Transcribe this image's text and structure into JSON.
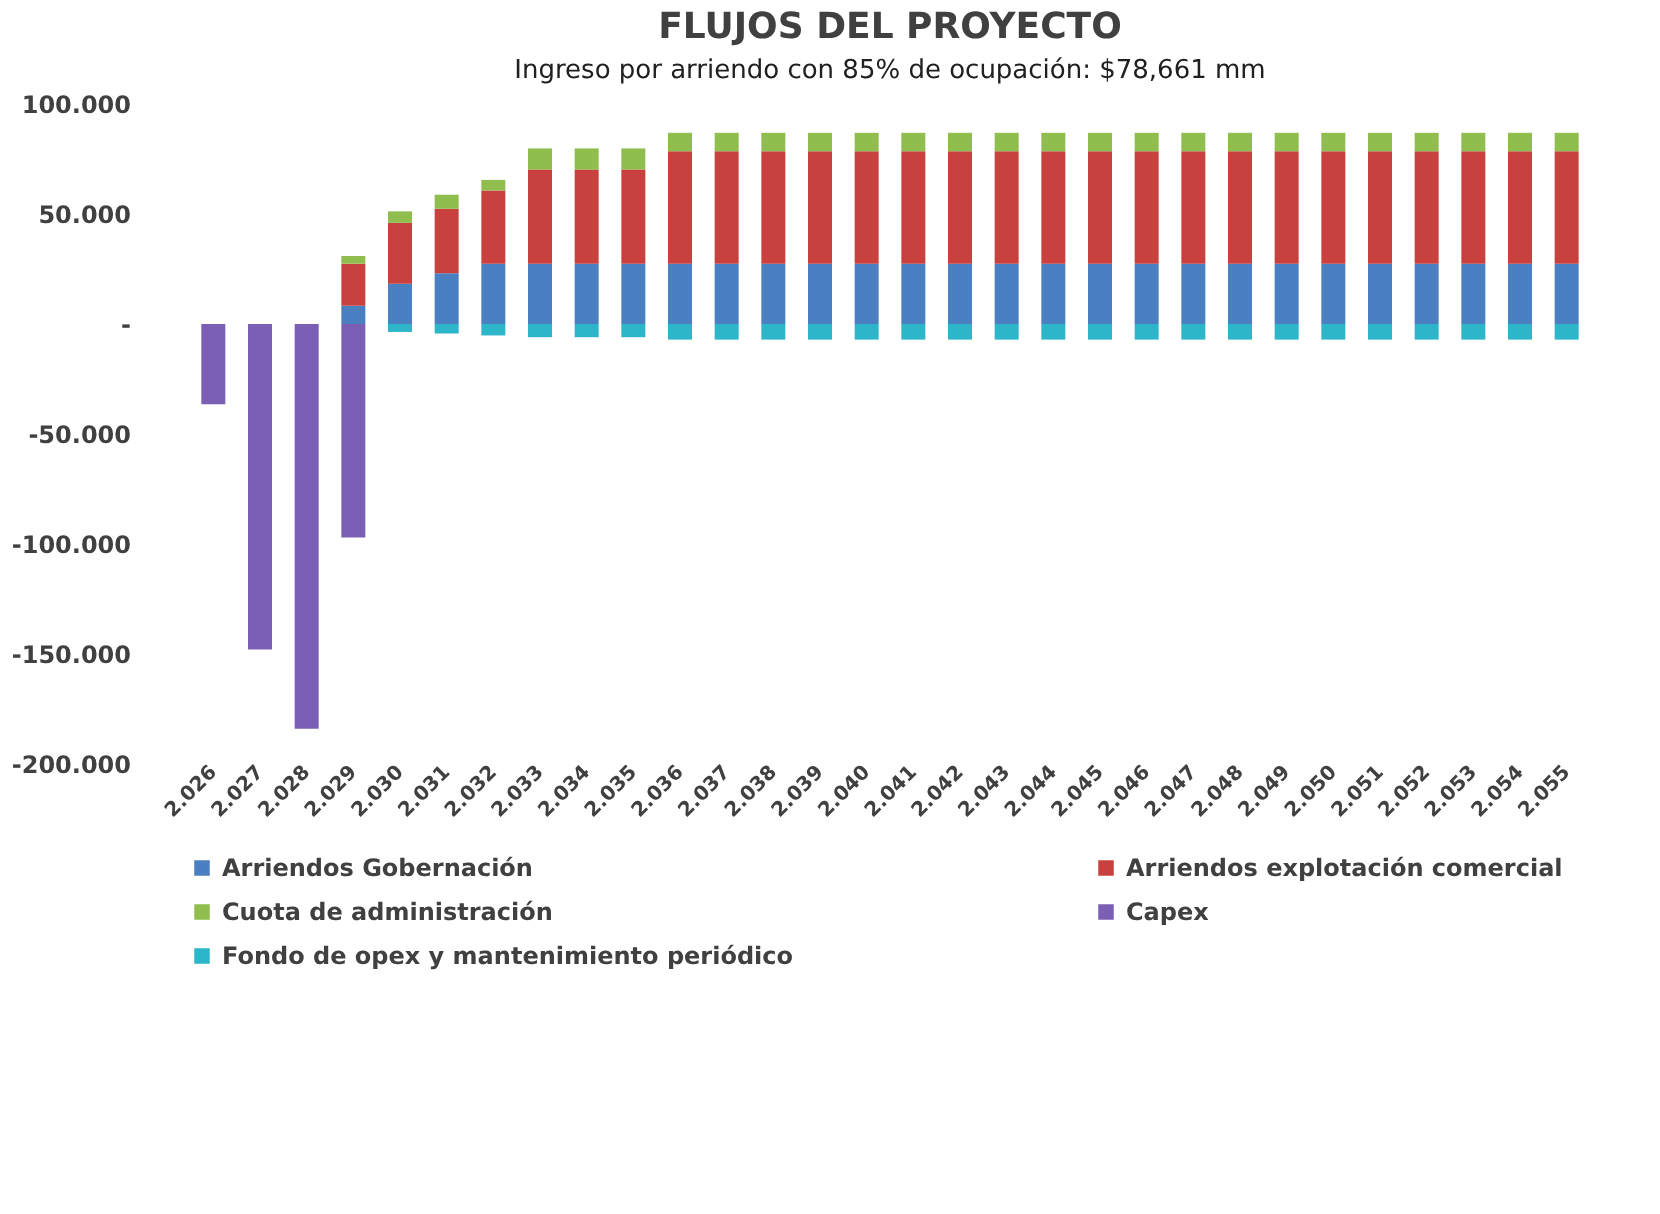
{
  "chart_data": {
    "type": "bar",
    "stacked": true,
    "title": "FLUJOS DEL PROYECTO",
    "subtitle": "Ingreso por arriendo con 85% de ocupación:  $78,661 mm",
    "categories": [
      "2.026",
      "2.027",
      "2.028",
      "2.029",
      "2.030",
      "2.031",
      "2.032",
      "2.033",
      "2.034",
      "2.035",
      "2.036",
      "2.037",
      "2.038",
      "2.039",
      "2.040",
      "2.041",
      "2.042",
      "2.043",
      "2.044",
      "2.045",
      "2.046",
      "2.047",
      "2.048",
      "2.049",
      "2.050",
      "2.051",
      "2.052",
      "2.053",
      "2.054",
      "2.055"
    ],
    "series": [
      {
        "name": "Arriendos Gobernación",
        "color": "#4a7fc1",
        "values": [
          null,
          null,
          null,
          8.3,
          18.3,
          23.1,
          27.4,
          27.4,
          27.4,
          27.4,
          27.4,
          27.4,
          27.4,
          27.4,
          27.4,
          27.4,
          27.4,
          27.4,
          27.4,
          27.4,
          27.4,
          27.4,
          27.4,
          27.4,
          27.4,
          27.4,
          27.4,
          27.4,
          27.4,
          27.4
        ]
      },
      {
        "name": "Arriendos explotación comercial",
        "color": "#c9413f",
        "values": [
          null,
          null,
          null,
          19.1,
          27.7,
          29.3,
          33.3,
          42.8,
          42.8,
          42.8,
          51.1,
          51.1,
          51.1,
          51.1,
          51.1,
          51.1,
          51.1,
          51.1,
          51.1,
          51.1,
          51.1,
          51.1,
          51.1,
          51.1,
          51.1,
          51.1,
          51.1,
          51.1,
          51.1,
          51.1
        ]
      },
      {
        "name": "Cuota de administración",
        "color": "#8fbd4e",
        "values": [
          null,
          null,
          null,
          3.5,
          5.2,
          6.4,
          4.8,
          9.6,
          9.6,
          9.6,
          8.4,
          8.4,
          8.4,
          8.4,
          8.4,
          8.4,
          8.4,
          8.4,
          8.4,
          8.4,
          8.4,
          8.4,
          8.4,
          8.4,
          8.4,
          8.4,
          8.4,
          8.4,
          8.4,
          8.4
        ]
      },
      {
        "name": "Capex",
        "color": "#7b5fb5",
        "values": [
          -36.5,
          -148,
          -184,
          -97,
          null,
          null,
          null,
          null,
          null,
          null,
          null,
          null,
          null,
          null,
          null,
          null,
          null,
          null,
          null,
          null,
          null,
          null,
          null,
          null,
          null,
          null,
          null,
          null,
          null,
          null
        ]
      },
      {
        "name": "Fondo de opex y mantenimiento periódico",
        "color": "#2db5c9",
        "values": [
          null,
          null,
          null,
          null,
          -3.6,
          -4.3,
          -5.2,
          -6,
          -6,
          -6,
          -7.1,
          -7.1,
          -7.1,
          -7.1,
          -7.1,
          -7.1,
          -7.1,
          -7.1,
          -7.1,
          -7.1,
          -7.1,
          -7.1,
          -7.1,
          -7.1,
          -7.1,
          -7.1,
          -7.1,
          -7.1,
          -7.1,
          -7.1
        ]
      }
    ],
    "ylim": [
      -200,
      100
    ],
    "yticks": [
      {
        "value": 100,
        "label": "100.000"
      },
      {
        "value": 50,
        "label": "50.000"
      },
      {
        "value": 0,
        "label": "-"
      },
      {
        "value": -50,
        "label": "-50.000"
      },
      {
        "value": -100,
        "label": "-100.000"
      },
      {
        "value": -150,
        "label": "-150.000"
      },
      {
        "value": -200,
        "label": "-200.000"
      }
    ],
    "grid": false,
    "legend": "bottom"
  }
}
